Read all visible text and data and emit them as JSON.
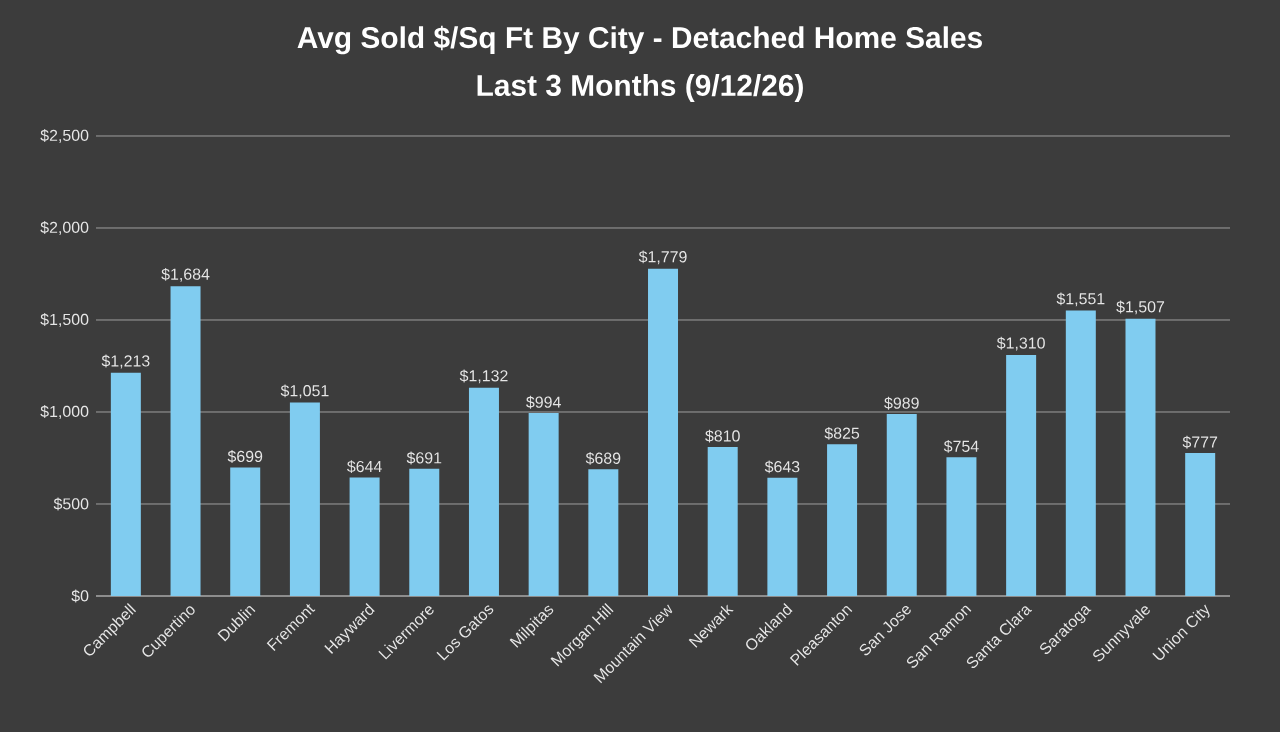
{
  "chart_data": {
    "type": "bar",
    "title": "Avg Sold $/Sq Ft By City - Detached Home Sales",
    "subtitle": "Last 3 Months (9/12/26)",
    "categories": [
      "Campbell",
      "Cupertino",
      "Dublin",
      "Fremont",
      "Hayward",
      "Livermore",
      "Los Gatos",
      "Milpitas",
      "Morgan Hill",
      "Mountain View",
      "Newark",
      "Oakland",
      "Pleasanton",
      "San Jose",
      "San Ramon",
      "Santa Clara",
      "Saratoga",
      "Sunnyvale",
      "Union City"
    ],
    "values": [
      1213,
      1684,
      699,
      1051,
      644,
      691,
      1132,
      994,
      689,
      1779,
      810,
      643,
      825,
      989,
      754,
      1310,
      1551,
      1507,
      777
    ],
    "value_labels": [
      "$1,213",
      "$1,684",
      "$699",
      "$1,051",
      "$644",
      "$691",
      "$1,132",
      "$994",
      "$689",
      "$1,779",
      "$810",
      "$643",
      "$825",
      "$989",
      "$754",
      "$1,310",
      "$1,551",
      "$1,507",
      "$777"
    ],
    "color": "#80ccf0",
    "ylim": [
      0,
      2500
    ],
    "yticks": [
      {
        "value": 0,
        "label": "$0"
      },
      {
        "value": 500,
        "label": "$500"
      },
      {
        "value": 1000,
        "label": "$1,000"
      },
      {
        "value": 1500,
        "label": "$1,500"
      },
      {
        "value": 2000,
        "label": "$2,000"
      },
      {
        "value": 2500,
        "label": "$2,500"
      }
    ],
    "grid": "y"
  }
}
